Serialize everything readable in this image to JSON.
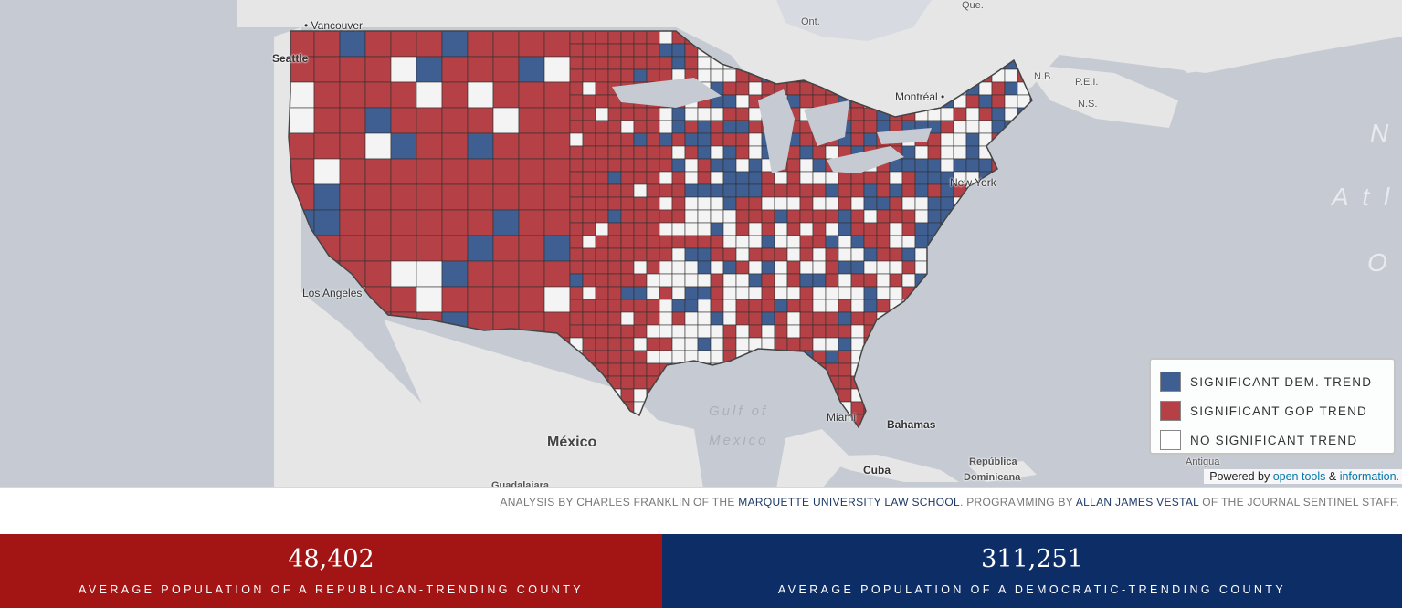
{
  "map": {
    "places": [
      {
        "name": "Vancouver",
        "key": "vancouver"
      },
      {
        "name": "Seattle",
        "key": "seattle"
      },
      {
        "name": "Ont.",
        "key": "ont"
      },
      {
        "name": "Que.",
        "key": "que"
      },
      {
        "name": "Montréal",
        "key": "montreal"
      },
      {
        "name": "N.B.",
        "key": "nb"
      },
      {
        "name": "P.E.I.",
        "key": "pei"
      },
      {
        "name": "N.S.",
        "key": "ns"
      },
      {
        "name": "New York",
        "key": "newyork"
      },
      {
        "name": "Los Angeles",
        "key": "losangeles"
      },
      {
        "name": "México",
        "key": "mexico"
      },
      {
        "name": "Gulf of",
        "key": "gulf1"
      },
      {
        "name": "Mexico",
        "key": "gulf2"
      },
      {
        "name": "Miami",
        "key": "miami"
      },
      {
        "name": "Bahamas",
        "key": "bahamas"
      },
      {
        "name": "Cuba",
        "key": "cuba"
      },
      {
        "name": "República",
        "key": "rep1"
      },
      {
        "name": "Dominicana",
        "key": "rep2"
      },
      {
        "name": "Antigua",
        "key": "antigua"
      },
      {
        "name": "Guadalajara",
        "key": "guadalajara"
      },
      {
        "name": "N",
        "key": "atl1"
      },
      {
        "name": "A t l",
        "key": "atl2"
      },
      {
        "name": "O",
        "key": "atl3"
      }
    ],
    "colors": {
      "dem": "#3f5f93",
      "gop": "#b54146",
      "none": "#f4f4f4",
      "land": "#e6e6e6",
      "water": "#c6cbd3"
    }
  },
  "legend": {
    "items": [
      {
        "label": "SIGNIFICANT DEM. TREND",
        "color": "#3f5f93"
      },
      {
        "label": "SIGNIFICANT GOP TREND",
        "color": "#b54146"
      },
      {
        "label": "NO SIGNIFICANT TREND",
        "color": "#ffffff"
      }
    ]
  },
  "attribution": {
    "prefix": "Powered by",
    "link1": "open tools",
    "amp": "&",
    "link2": "information."
  },
  "credit": {
    "part1": "ANALYSIS BY CHARLES FRANKLIN OF THE",
    "link1": "MARQUETTE UNIVERSITY LAW SCHOOL",
    "part2": ". PROGRAMMING BY",
    "link2": "ALLAN JAMES VESTAL",
    "part3": "OF THE JOURNAL SENTINEL STAFF."
  },
  "stats": {
    "gop": {
      "value": "48,402",
      "caption": "AVERAGE POPULATION OF A REPUBLICAN-TRENDING COUNTY",
      "color": "#a31515"
    },
    "dem": {
      "value": "311,251",
      "caption": "AVERAGE POPULATION OF A DEMOCRATIC-TRENDING COUNTY",
      "color": "#0d2d66"
    }
  }
}
